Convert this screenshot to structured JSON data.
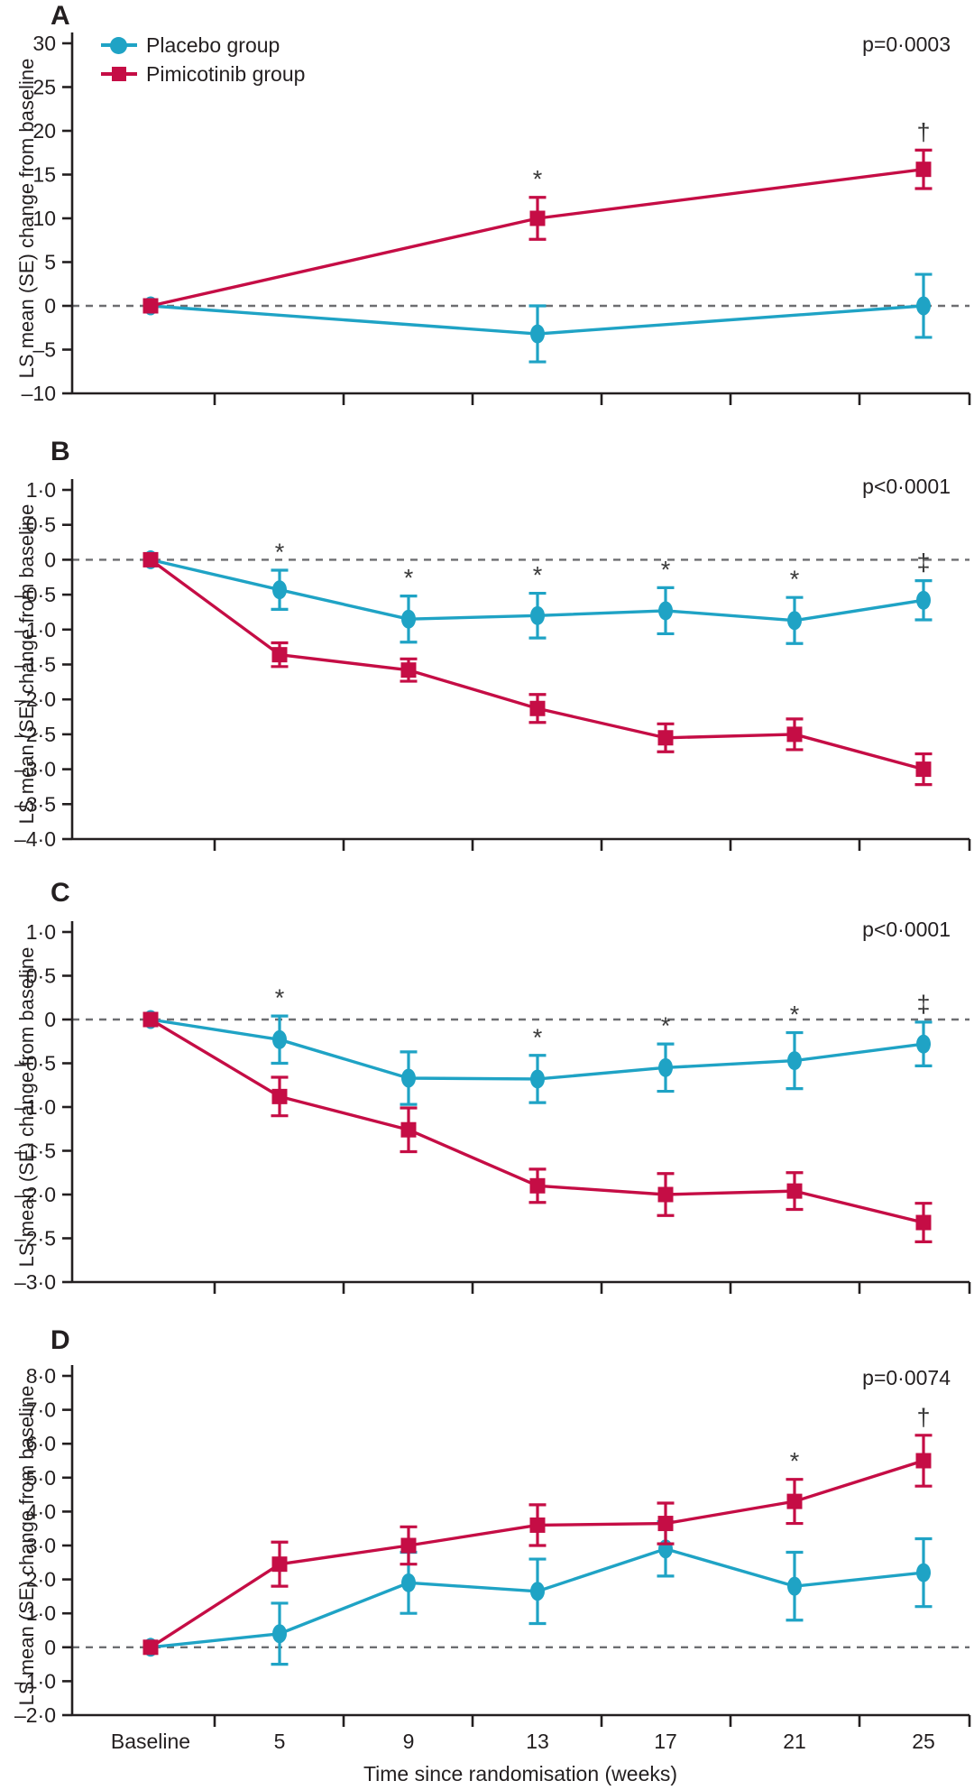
{
  "figure": {
    "ylabel": "LS mean (SE) change from baseline",
    "xlabel": "Time since randomisation (weeks)",
    "ink_color": "#231f20",
    "zero_line_color": "#6d6e71",
    "significance_color": "#3a3a3a",
    "legend": {
      "items": [
        {
          "label": "Placebo group",
          "marker": "circle",
          "color": "#1FA3C5"
        },
        {
          "label": "Pimicotinib group",
          "marker": "square",
          "color": "#C50D45"
        }
      ]
    }
  },
  "chart_data": [
    {
      "type": "line",
      "panel": "A",
      "p_label": "p=0·0003",
      "categories": [
        "Baseline",
        "5",
        "9",
        "13",
        "17",
        "21",
        "25"
      ],
      "x_numeric_weeks": [
        0,
        5,
        9,
        13,
        17,
        21,
        25
      ],
      "ylim": [
        -10,
        30
      ],
      "ytick_vals": [
        30,
        25,
        20,
        15,
        10,
        5,
        0,
        -5,
        -10
      ],
      "ytick_labels": [
        "30",
        "25",
        "20",
        "15",
        "10",
        "5",
        "0",
        "–5",
        "–10"
      ],
      "grid": false,
      "legend_position": "top-left-inside",
      "series": [
        {
          "name": "Placebo group",
          "marker": "circle",
          "color": "#1FA3C5",
          "x_idx": [
            0,
            3,
            6
          ],
          "values": [
            0,
            -3.2,
            0.0
          ],
          "se": [
            null,
            3.2,
            3.6
          ]
        },
        {
          "name": "Pimicotinib group",
          "marker": "square",
          "color": "#C50D45",
          "x_idx": [
            0,
            3,
            6
          ],
          "values": [
            0,
            10.0,
            15.6
          ],
          "se": [
            null,
            2.4,
            2.2
          ]
        }
      ],
      "annotations": [
        {
          "series": 1,
          "x_idx": 3,
          "text": "*"
        },
        {
          "series": 1,
          "x_idx": 6,
          "text": "†"
        }
      ]
    },
    {
      "type": "line",
      "panel": "B",
      "p_label": "p<0·0001",
      "categories": [
        "Baseline",
        "5",
        "9",
        "13",
        "17",
        "21",
        "25"
      ],
      "x_numeric_weeks": [
        0,
        5,
        9,
        13,
        17,
        21,
        25
      ],
      "ylim": [
        -4.0,
        1.0
      ],
      "ytick_vals": [
        1.0,
        0.5,
        0,
        -0.5,
        -1.0,
        -1.5,
        -2.0,
        -2.5,
        -3.0,
        -3.5,
        -4.0
      ],
      "ytick_labels": [
        "1·0",
        "0·5",
        "0",
        "–0·5",
        "–1·0",
        "–1·5",
        "–2·0",
        "–2·5",
        "–3·0",
        "–3·5",
        "–4·0"
      ],
      "grid": false,
      "series": [
        {
          "name": "Placebo group",
          "marker": "circle",
          "color": "#1FA3C5",
          "x_idx": [
            0,
            1,
            2,
            3,
            4,
            5,
            6
          ],
          "values": [
            0,
            -0.43,
            -0.85,
            -0.8,
            -0.73,
            -0.87,
            -0.58
          ],
          "se": [
            null,
            0.28,
            0.33,
            0.32,
            0.33,
            0.33,
            0.28
          ]
        },
        {
          "name": "Pimicotinib group",
          "marker": "square",
          "color": "#C50D45",
          "x_idx": [
            0,
            1,
            2,
            3,
            4,
            5,
            6
          ],
          "values": [
            0,
            -1.36,
            -1.58,
            -2.13,
            -2.55,
            -2.5,
            -3.0
          ],
          "se": [
            null,
            0.17,
            0.16,
            0.2,
            0.2,
            0.22,
            0.22
          ]
        }
      ],
      "annotations": [
        {
          "series": 0,
          "x_idx": 1,
          "text": "*"
        },
        {
          "series": 0,
          "x_idx": 2,
          "text": "*"
        },
        {
          "series": 0,
          "x_idx": 3,
          "text": "*"
        },
        {
          "series": 0,
          "x_idx": 4,
          "text": "*"
        },
        {
          "series": 0,
          "x_idx": 5,
          "text": "*"
        },
        {
          "series": 0,
          "x_idx": 6,
          "text": "‡"
        }
      ]
    },
    {
      "type": "line",
      "panel": "C",
      "p_label": "p<0·0001",
      "categories": [
        "Baseline",
        "5",
        "9",
        "13",
        "17",
        "21",
        "25"
      ],
      "x_numeric_weeks": [
        0,
        5,
        9,
        13,
        17,
        21,
        25
      ],
      "ylim": [
        -3.0,
        1.0
      ],
      "ytick_vals": [
        1.0,
        0.5,
        0,
        -0.5,
        -1.0,
        -1.5,
        -2.0,
        -2.5,
        -3.0
      ],
      "ytick_labels": [
        "1·0",
        "0·5",
        "0",
        "–0·5",
        "–1·0",
        "–1·5",
        "–2·0",
        "–2·5",
        "–3·0"
      ],
      "grid": false,
      "series": [
        {
          "name": "Placebo group",
          "marker": "circle",
          "color": "#1FA3C5",
          "x_idx": [
            0,
            1,
            2,
            3,
            4,
            5,
            6
          ],
          "values": [
            0,
            -0.23,
            -0.67,
            -0.68,
            -0.55,
            -0.47,
            -0.28
          ],
          "se": [
            null,
            0.27,
            0.3,
            0.27,
            0.27,
            0.32,
            0.25
          ]
        },
        {
          "name": "Pimicotinib group",
          "marker": "square",
          "color": "#C50D45",
          "x_idx": [
            0,
            1,
            2,
            3,
            4,
            5,
            6
          ],
          "values": [
            0,
            -0.88,
            -1.26,
            -1.9,
            -2.0,
            -1.96,
            -2.32
          ],
          "se": [
            null,
            0.22,
            0.25,
            0.19,
            0.24,
            0.21,
            0.22
          ]
        }
      ],
      "annotations": [
        {
          "series": 0,
          "x_idx": 1,
          "text": "*"
        },
        {
          "series": 0,
          "x_idx": 3,
          "text": "*"
        },
        {
          "series": 0,
          "x_idx": 4,
          "text": "*"
        },
        {
          "series": 0,
          "x_idx": 5,
          "text": "*"
        },
        {
          "series": 0,
          "x_idx": 6,
          "text": "‡"
        }
      ]
    },
    {
      "type": "line",
      "panel": "D",
      "p_label": "p=0·0074",
      "categories": [
        "Baseline",
        "5",
        "9",
        "13",
        "17",
        "21",
        "25"
      ],
      "x_numeric_weeks": [
        0,
        5,
        9,
        13,
        17,
        21,
        25
      ],
      "ylim": [
        -2.0,
        8.0
      ],
      "ytick_vals": [
        8.0,
        7.0,
        6.0,
        5.0,
        4.0,
        3.0,
        2.0,
        1.0,
        0,
        -1.0,
        -2.0
      ],
      "ytick_labels": [
        "8·0",
        "7·0",
        "6·0",
        "5·0",
        "4·0",
        "3·0",
        "2·0",
        "1·0",
        "0",
        "–1·0",
        "–2·0"
      ],
      "grid": false,
      "series": [
        {
          "name": "Placebo group",
          "marker": "circle",
          "color": "#1FA3C5",
          "x_idx": [
            0,
            1,
            2,
            3,
            4,
            5,
            6
          ],
          "values": [
            0,
            0.4,
            1.9,
            1.65,
            2.9,
            1.8,
            2.2
          ],
          "se": [
            null,
            0.9,
            0.9,
            0.95,
            0.8,
            1.0,
            1.0
          ]
        },
        {
          "name": "Pimicotinib group",
          "marker": "square",
          "color": "#C50D45",
          "x_idx": [
            0,
            1,
            2,
            3,
            4,
            5,
            6
          ],
          "values": [
            0,
            2.45,
            3.0,
            3.6,
            3.65,
            4.3,
            5.5
          ],
          "se": [
            null,
            0.65,
            0.55,
            0.6,
            0.6,
            0.65,
            0.75
          ]
        }
      ],
      "annotations": [
        {
          "series": 1,
          "x_idx": 5,
          "text": "*"
        },
        {
          "series": 1,
          "x_idx": 6,
          "text": "†"
        }
      ]
    }
  ]
}
